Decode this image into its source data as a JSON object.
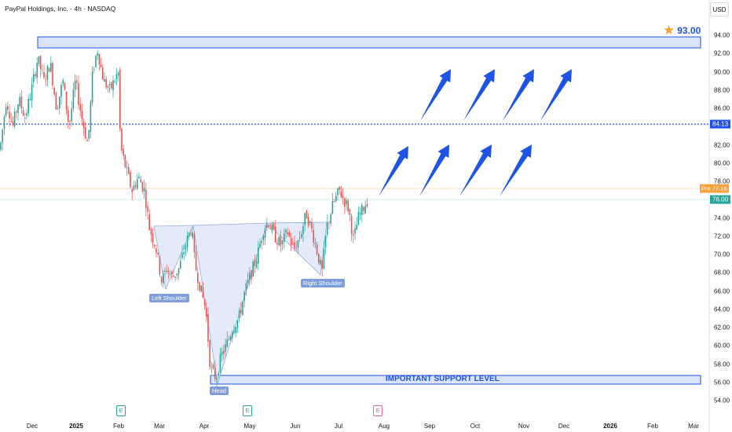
{
  "header": {
    "title": "PayPal Holdings, Inc. · 4h · NASDAQ",
    "currency": "USD"
  },
  "colors": {
    "up": "#26a69a",
    "down": "#ef5350",
    "accent": "#1e53e5",
    "zone_fill": "#dbe4f7",
    "zone_border": "#1e53e5",
    "last_price": "#26a69a",
    "premarket": "#f7a13e"
  },
  "price_axis": {
    "ticks": [
      "94.00",
      "92.00",
      "90.00",
      "88.00",
      "86.00",
      "84.00",
      "82.00",
      "80.00",
      "78.00",
      "76.00",
      "74.00",
      "72.00",
      "70.00",
      "68.00",
      "66.00",
      "64.00",
      "62.00",
      "60.00",
      "58.00",
      "56.00",
      "54.00"
    ],
    "level_label": "84.13",
    "premarket_label": "Pre",
    "premarket_price": "77.16",
    "last_price": "76.00"
  },
  "time_axis": {
    "labels": [
      {
        "text": "Dec",
        "bold": false
      },
      {
        "text": "2025",
        "bold": true
      },
      {
        "text": "Feb",
        "bold": false
      },
      {
        "text": "Mar",
        "bold": false
      },
      {
        "text": "Apr",
        "bold": false
      },
      {
        "text": "May",
        "bold": false
      },
      {
        "text": "Jun",
        "bold": false
      },
      {
        "text": "Jul",
        "bold": false
      },
      {
        "text": "Aug",
        "bold": false
      },
      {
        "text": "Sep",
        "bold": false
      },
      {
        "text": "Oct",
        "bold": false
      },
      {
        "text": "Nov",
        "bold": false
      },
      {
        "text": "Dec",
        "bold": false
      },
      {
        "text": "2026",
        "bold": true
      },
      {
        "text": "Feb",
        "bold": false
      },
      {
        "text": "Mar",
        "bold": false
      }
    ]
  },
  "annotations": {
    "target_price": "93.00",
    "left_shoulder": "Left Shoulder",
    "head": "Head",
    "right_shoulder": "Right Shoulder",
    "support": "IMPORTANT SUPPORT LEVEL",
    "earnings_marker": "E"
  },
  "chart_data": {
    "type": "candlestick",
    "symbol": "PayPal Holdings, Inc.",
    "interval": "4h",
    "exchange": "NASDAQ",
    "ylim": [
      53,
      95.5
    ],
    "resistance_zone": [
      92.2,
      93.4
    ],
    "support_zone": [
      55.7,
      56.7
    ],
    "horizontal_level": 84.13,
    "premarket_price": 77.16,
    "last_price": 76.0,
    "target": 93.0,
    "pattern": "inverse head and shoulders",
    "key_points": {
      "left_shoulder_low": 66.5,
      "head_low": 56.0,
      "right_shoulder_low": 68.0,
      "neckline": [
        73.2,
        73.5
      ]
    },
    "path": [
      [
        0,
        81.5
      ],
      [
        8,
        87
      ],
      [
        16,
        84
      ],
      [
        24,
        87
      ],
      [
        32,
        85
      ],
      [
        40,
        88
      ],
      [
        48,
        91.5
      ],
      [
        56,
        89
      ],
      [
        64,
        91
      ],
      [
        72,
        86
      ],
      [
        80,
        89
      ],
      [
        88,
        84
      ],
      [
        96,
        89
      ],
      [
        104,
        85
      ],
      [
        112,
        82
      ],
      [
        118,
        90
      ],
      [
        124,
        92.5
      ],
      [
        132,
        89
      ],
      [
        140,
        88
      ],
      [
        148,
        89.5
      ],
      [
        152,
        90
      ],
      [
        153,
        82
      ],
      [
        160,
        79.5
      ],
      [
        168,
        77
      ],
      [
        176,
        78.5
      ],
      [
        184,
        77
      ],
      [
        190,
        73
      ],
      [
        198,
        71
      ],
      [
        206,
        67
      ],
      [
        212,
        68.5
      ],
      [
        220,
        67.5
      ],
      [
        228,
        68.5
      ],
      [
        236,
        71
      ],
      [
        244,
        73
      ],
      [
        248,
        69
      ],
      [
        256,
        66
      ],
      [
        262,
        64
      ],
      [
        268,
        57.5
      ],
      [
        275,
        56.5
      ],
      [
        282,
        59
      ],
      [
        288,
        60
      ],
      [
        296,
        62
      ],
      [
        304,
        63
      ],
      [
        312,
        66
      ],
      [
        320,
        68
      ],
      [
        328,
        70
      ],
      [
        336,
        73
      ],
      [
        342,
        73.5
      ],
      [
        350,
        72
      ],
      [
        358,
        71
      ],
      [
        366,
        72.5
      ],
      [
        374,
        70.5
      ],
      [
        382,
        72
      ],
      [
        390,
        74.5
      ],
      [
        396,
        73
      ],
      [
        402,
        71
      ],
      [
        410,
        68
      ],
      [
        416,
        73
      ],
      [
        424,
        75.5
      ],
      [
        432,
        77
      ],
      [
        438,
        76
      ],
      [
        444,
        75
      ],
      [
        450,
        71.5
      ],
      [
        456,
        74
      ],
      [
        462,
        75
      ],
      [
        468,
        76
      ]
    ]
  }
}
